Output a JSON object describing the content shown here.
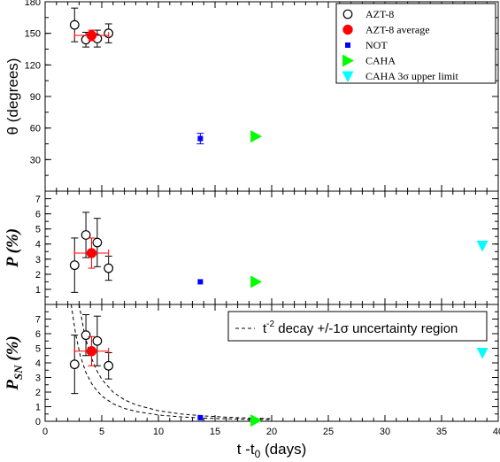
{
  "chart_data": [
    {
      "panel": "theta",
      "type": "scatter",
      "ylabel": "θ (degrees)",
      "ylim": [
        0,
        180
      ],
      "yticks": [
        "30",
        "60",
        "90",
        "120",
        "150",
        "180"
      ],
      "xlim": [
        0,
        40
      ],
      "legend": {
        "placement": "top-right",
        "entries": [
          {
            "label": "AZT-8",
            "marker": "open-circle",
            "color": "#000000"
          },
          {
            "label": "AZT-8 average",
            "marker": "filled-circle",
            "color": "#ff0000"
          },
          {
            "label": "NOT",
            "marker": "square",
            "color": "#0000ff"
          },
          {
            "label": "CAHA",
            "marker": "triangle-right",
            "color": "#00ff00"
          },
          {
            "label": "CAHA 3",
            "label_symbol": "σ",
            "label_tail": " upper limit",
            "marker": "triangle-down",
            "color": "#00ffff"
          }
        ]
      },
      "series": [
        {
          "name": "AZT-8",
          "points": [
            {
              "x": 2.6,
              "y": 158,
              "yerr": 16
            },
            {
              "x": 3.6,
              "y": 144,
              "yerr": 7
            },
            {
              "x": 4.6,
              "y": 145,
              "yerr": 8
            },
            {
              "x": 5.6,
              "y": 150,
              "yerr": 9
            }
          ]
        },
        {
          "name": "AZT-8 average",
          "points": [
            {
              "x": 4.1,
              "y": 148,
              "yerr": 5,
              "xerr": 1.5
            }
          ]
        },
        {
          "name": "NOT",
          "points": [
            {
              "x": 13.7,
              "y": 50,
              "yerr": 5
            }
          ]
        },
        {
          "name": "CAHA",
          "points": [
            {
              "x": 18.6,
              "y": 52
            }
          ]
        }
      ]
    },
    {
      "panel": "P",
      "type": "scatter",
      "ylabel": "P",
      "ylabel_tail": "(%)",
      "ylim": [
        0,
        7.5
      ],
      "yticks": [
        "1",
        "2",
        "3",
        "4",
        "5",
        "6",
        "7"
      ],
      "xlim": [
        0,
        40
      ],
      "series": [
        {
          "name": "AZT-8",
          "points": [
            {
              "x": 2.6,
              "y": 2.6,
              "yerr": 1.8
            },
            {
              "x": 3.6,
              "y": 4.6,
              "yerr": 1.5
            },
            {
              "x": 4.6,
              "y": 4.1,
              "yerr": 1.6
            },
            {
              "x": 5.6,
              "y": 2.4,
              "yerr": 0.8
            }
          ]
        },
        {
          "name": "AZT-8 average",
          "points": [
            {
              "x": 4.1,
              "y": 3.4,
              "yerr": 1.0,
              "xerr": 1.5
            }
          ]
        },
        {
          "name": "NOT",
          "points": [
            {
              "x": 13.7,
              "y": 1.5
            }
          ]
        },
        {
          "name": "CAHA",
          "points": [
            {
              "x": 18.6,
              "y": 1.5
            }
          ]
        },
        {
          "name": "CAHA 3σ upper limit",
          "points": [
            {
              "x": 38.6,
              "y": 3.9
            }
          ]
        }
      ]
    },
    {
      "panel": "PSN",
      "type": "scatter",
      "ylabel": "P",
      "ylabel_sub": "SN",
      "ylabel_tail": "(%)",
      "ylim": [
        0,
        8
      ],
      "yticks": [
        "0",
        "1",
        "2",
        "3",
        "4",
        "5",
        "6",
        "7"
      ],
      "xlim": [
        0,
        40
      ],
      "xticks": [
        "0",
        "5",
        "10",
        "15",
        "20",
        "25",
        "30",
        "35",
        "40"
      ],
      "xlabel": "t -t",
      "xlabel_sub": "0",
      "xlabel_tail": " (days)",
      "legend": {
        "placement": "top-right",
        "entries": [
          {
            "label": "t",
            "label_sup": "-2",
            "label_tail": " decay +/-1",
            "label_symbol": "σ",
            "label_end": " uncertainty region",
            "style": "dashed"
          }
        ]
      },
      "curves": [
        {
          "style": "dashed",
          "x": [
            2.3,
            2.7,
            3.1,
            3.6,
            4.2,
            5,
            6,
            7,
            8,
            10,
            12,
            14,
            16,
            18,
            20
          ],
          "y": [
            8.0,
            5.94,
            4.5,
            3.34,
            2.45,
            1.73,
            1.2,
            0.88,
            0.68,
            0.43,
            0.3,
            0.22,
            0.17,
            0.13,
            0.11
          ]
        },
        {
          "style": "dashed",
          "x": [
            3.0,
            3.5,
            4,
            4.5,
            5,
            6,
            7,
            8,
            10,
            12,
            14,
            16,
            18,
            20
          ],
          "y": [
            8.0,
            5.88,
            4.5,
            3.56,
            2.88,
            2.0,
            1.47,
            1.13,
            0.72,
            0.5,
            0.37,
            0.28,
            0.22,
            0.18
          ]
        }
      ],
      "series": [
        {
          "name": "AZT-8",
          "points": [
            {
              "x": 2.6,
              "y": 3.9,
              "yerr": 2.0
            },
            {
              "x": 3.6,
              "y": 5.9,
              "yerr": 1.4
            },
            {
              "x": 4.6,
              "y": 5.5,
              "yerr": 1.7
            },
            {
              "x": 5.6,
              "y": 3.8,
              "yerr": 0.9
            }
          ]
        },
        {
          "name": "AZT-8 average",
          "points": [
            {
              "x": 4.1,
              "y": 4.8,
              "yerr": 1.0,
              "xerr": 1.5
            }
          ]
        },
        {
          "name": "NOT",
          "points": [
            {
              "x": 13.7,
              "y": 0.25
            }
          ]
        },
        {
          "name": "CAHA",
          "points": [
            {
              "x": 18.6,
              "y": 0.05
            }
          ]
        },
        {
          "name": "CAHA 3σ upper limit",
          "points": [
            {
              "x": 38.6,
              "y": 4.7
            }
          ]
        }
      ]
    }
  ]
}
